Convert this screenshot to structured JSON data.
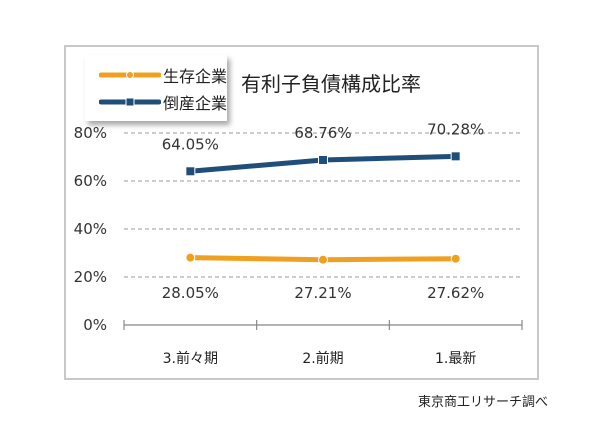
{
  "chart_data": {
    "type": "line",
    "title": "有利子負債構成比率",
    "categories": [
      "3.前々期",
      "2.前期",
      "1.最新"
    ],
    "series": [
      {
        "name": "生存企業",
        "color": "#f0a020",
        "marker": "circle",
        "values": [
          28.05,
          27.21,
          27.62
        ],
        "labels": [
          "28.05%",
          "27.21%",
          "27.62%"
        ]
      },
      {
        "name": "倒産企業",
        "color": "#1f4e79",
        "marker": "square",
        "values": [
          64.05,
          68.76,
          70.28
        ],
        "labels": [
          "64.05%",
          "68.76%",
          "70.28%"
        ]
      }
    ],
    "yticks": [
      "0%",
      "20%",
      "40%",
      "60%",
      "80%"
    ],
    "ylim": [
      0,
      80
    ],
    "xlabel": "",
    "ylabel": "",
    "grid": "horizontal dashed",
    "legend_position": "top-left"
  },
  "source_note": "東京商工リサーチ調べ"
}
